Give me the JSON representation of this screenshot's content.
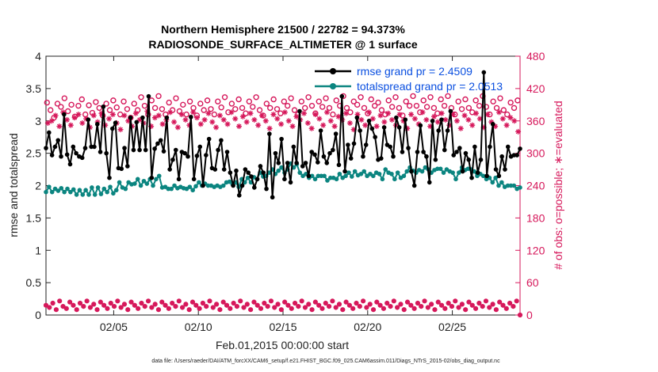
{
  "colors": {
    "rmse": "#000000",
    "spread": "#0b8580",
    "obs": "#d6185b",
    "legend_text": "#0a4fe0",
    "axis": "#222222"
  },
  "chart_data": {
    "type": "line",
    "title": "Northern Hemisphere 21500 / 22782 = 94.373%",
    "subtitle": "RADIOSONDE_SURFACE_ALTIMETER @ 1 surface",
    "xlabel": "Feb.01,2015 00:00:00 start",
    "ylabel": "rmse and totalspread",
    "ylabel_right": "# of obs: o=possible; ∗=evaluated",
    "footer": "data file: /Users/raeder/DAI/ATM_forcXX/CAM6_setup/f.e21.FHIST_BGC.f09_025.CAM6assim.011/Diags_NTrS_2015-02/obs_diag_output.nc",
    "xlim": [
      1,
      29
    ],
    "ylim": [
      0,
      4
    ],
    "ylim_right": [
      0,
      480
    ],
    "yticks": [
      "0",
      "0.5",
      "1",
      "1.5",
      "2",
      "2.5",
      "3",
      "3.5",
      "4"
    ],
    "yticks_right": [
      "0",
      "60",
      "120",
      "180",
      "240",
      "300",
      "360",
      "420",
      "480"
    ],
    "xticks": [
      {
        "day": 5,
        "label": "02/05"
      },
      {
        "day": 10,
        "label": "02/10"
      },
      {
        "day": 15,
        "label": "02/15"
      },
      {
        "day": 20,
        "label": "02/20"
      },
      {
        "day": 25,
        "label": "02/25"
      }
    ],
    "legend": [
      {
        "key": "rmse",
        "label": "rmse grand pr = 2.4509"
      },
      {
        "key": "spread",
        "label": "totalspread grand pr = 2.0513"
      }
    ],
    "series": [
      {
        "name": "rmse",
        "axis": "left",
        "values": [
          2.58,
          2.82,
          2.47,
          2.6,
          2.7,
          2.45,
          3.1,
          2.48,
          2.33,
          2.6,
          2.5,
          2.45,
          2.43,
          2.58,
          3.02,
          2.6,
          2.6,
          2.95,
          2.52,
          3.22,
          2.5,
          2.12,
          2.88,
          2.97,
          2.27,
          2.26,
          2.58,
          2.3,
          3.05,
          2.55,
          2.98,
          2.55,
          3.05,
          2.55,
          3.38,
          2.12,
          2.57,
          2.65,
          2.7,
          2.53,
          3.05,
          2.25,
          2.4,
          2.55,
          2.1,
          2.52,
          2.5,
          2.45,
          3.06,
          2.1,
          2.46,
          2.6,
          2.0,
          2.47,
          2.72,
          2.27,
          2.25,
          2.55,
          2.7,
          2.25,
          2.52,
          2.2,
          2.0,
          2.23,
          1.85,
          2.0,
          2.25,
          2.2,
          2.14,
          1.97,
          2.1,
          2.3,
          2.2,
          1.95,
          2.8,
          1.82,
          2.5,
          2.35,
          2.72,
          2.1,
          2.35,
          2.05,
          2.6,
          2.35,
          3.15,
          2.3,
          2.35,
          2.15,
          2.52,
          2.48,
          2.36,
          2.85,
          2.45,
          2.35,
          2.5,
          2.55,
          2.8,
          2.32,
          3.38,
          2.22,
          2.63,
          2.42,
          2.65,
          3.05,
          2.85,
          2.45,
          2.63,
          3.0,
          2.88,
          2.75,
          2.4,
          2.42,
          2.9,
          2.63,
          2.6,
          2.45,
          3.05,
          2.9,
          2.52,
          3.02,
          2.58,
          2.22,
          2.0,
          2.52,
          2.93,
          2.52,
          2.45,
          2.05,
          3.0,
          2.4,
          2.85,
          3.02,
          2.55,
          2.85,
          3.15,
          2.47,
          2.52,
          2.58,
          2.22,
          2.5,
          2.4,
          2.12,
          2.6,
          2.2,
          2.4,
          3.75,
          2.15,
          2.6,
          2.95,
          2.25,
          2.15,
          2.45,
          2.25,
          2.6,
          2.45,
          2.47,
          2.47,
          2.57
        ]
      },
      {
        "name": "totalspread",
        "axis": "left",
        "values": [
          1.9,
          1.98,
          1.9,
          1.95,
          1.92,
          1.96,
          1.9,
          1.95,
          1.9,
          1.94,
          1.86,
          1.93,
          1.86,
          1.93,
          1.86,
          1.97,
          1.86,
          1.97,
          1.87,
          1.95,
          1.9,
          1.98,
          1.88,
          1.93,
          2.05,
          1.97,
          1.95,
          2.05,
          2.02,
          2.03,
          2.1,
          2.0,
          2.07,
          2.03,
          2.1,
          2.0,
          2.1,
          2.15,
          1.97,
          1.98,
          1.95,
          1.95,
          2.0,
          1.96,
          1.98,
          1.96,
          1.95,
          1.98,
          1.93,
          1.99,
          2.05,
          2.0,
          2.03,
          2.0,
          2.0,
          1.98,
          2.0,
          1.98,
          2.0,
          2.05,
          2.06,
          2.02,
          2.05,
          1.98,
          2.1,
          2.05,
          2.12,
          2.05,
          2.13,
          2.1,
          2.2,
          2.14,
          2.15,
          2.2,
          2.25,
          2.18,
          2.23,
          2.28,
          2.2,
          2.25,
          2.34,
          2.28,
          2.33,
          2.2,
          2.15,
          2.18,
          2.12,
          2.15,
          2.1,
          2.15,
          2.15,
          2.15,
          2.08,
          2.12,
          2.12,
          2.1,
          2.18,
          2.12,
          2.15,
          2.2,
          2.14,
          2.22,
          2.16,
          2.18,
          2.22,
          2.15,
          2.18,
          2.15,
          2.2,
          2.18,
          2.1,
          2.25,
          2.2,
          2.18,
          2.1,
          2.2,
          2.12,
          2.15,
          2.22,
          2.28,
          2.23,
          2.2,
          2.24,
          2.22,
          2.28,
          2.25,
          2.2,
          2.24,
          2.26,
          2.26,
          2.2,
          2.25,
          2.22,
          2.2,
          2.1,
          2.2,
          2.28,
          2.24,
          2.26,
          2.25,
          2.22,
          2.15,
          2.18,
          2.15,
          2.1,
          2.12,
          2.05,
          2.12,
          2.0,
          2.05,
          1.98,
          2.0,
          2.0,
          2.0,
          1.95,
          1.97
        ]
      },
      {
        "name": "obs possible",
        "axis": "right",
        "values": [
          394,
          380,
          366,
          392,
          386,
          402,
          378,
          390,
          368,
          388,
          400,
          372,
          389,
          375,
          395,
          384,
          370,
          392,
          380,
          398,
          385,
          372,
          396,
          382,
          366,
          392,
          380,
          404,
          388,
          372,
          398,
          384,
          406,
          382,
          372,
          394,
          380,
          402,
          378,
          390,
          372,
          396,
          384,
          370,
          392,
          380,
          398,
          382,
          372,
          396,
          385,
          404,
          376,
          392,
          382,
          400,
          384,
          374,
          396,
          386,
          404,
          380,
          370,
          392,
          384,
          400,
          382,
          374,
          396,
          388,
          402,
          380,
          372,
          396,
          384,
          404,
          388,
          374,
          396,
          386,
          402,
          384,
          372,
          398,
          388,
          406,
          384,
          376,
          396,
          390,
          404,
          384,
          374,
          400,
          388,
          394,
          380,
          372,
          398,
          386,
          404,
          384,
          370,
          396,
          388,
          406,
          388,
          376,
          398,
          386,
          404,
          384,
          374,
          400,
          388,
          406,
          384,
          372,
          396,
          382,
          400,
          384,
          376,
          398,
          388,
          406,
          386,
          372,
          396,
          384,
          402,
          380,
          372,
          394,
          384,
          398
        ],
        "x_step": 0.2
      },
      {
        "name": "obs evaluated",
        "axis": "right",
        "values": [
          356,
          360,
          370,
          350,
          376,
          362,
          352,
          366,
          372,
          356,
          364,
          348,
          370,
          358,
          374,
          352,
          364,
          372,
          356,
          344,
          370,
          360,
          350,
          374,
          362,
          356,
          378,
          350,
          366,
          370,
          354,
          362,
          376,
          358,
          348,
          372,
          362,
          352,
          376,
          366,
          354,
          362,
          374,
          358,
          348,
          370,
          362,
          354,
          376,
          364,
          350,
          368,
          358,
          374,
          362,
          352,
          370,
          360,
          346,
          372,
          364,
          354,
          376,
          360,
          350,
          368,
          362,
          374,
          356,
          346,
          372,
          364,
          352,
          376,
          360,
          350,
          368,
          362,
          374,
          356,
          344,
          372,
          362,
          352,
          376,
          364,
          350,
          370,
          358,
          374,
          362,
          352,
          372,
          360,
          346,
          372,
          364,
          354,
          376,
          362,
          350,
          368,
          358,
          374,
          362,
          352,
          372,
          360,
          346,
          370,
          362,
          352,
          374,
          364,
          348,
          372,
          358,
          350,
          376,
          364,
          352,
          366,
          360,
          340
        ],
        "x_step": 0.2
      },
      {
        "name": "obs rejected low",
        "axis": "right",
        "values": [
          18,
          14,
          22,
          10,
          26,
          16,
          12,
          24,
          18,
          10,
          22,
          16,
          26,
          14,
          20,
          10,
          24,
          18,
          12,
          22,
          16,
          26,
          14,
          20,
          10,
          24,
          18,
          12,
          22,
          16,
          26,
          14,
          20,
          10,
          24,
          18,
          12,
          22,
          16,
          26,
          14,
          20,
          10,
          24,
          18,
          12,
          22,
          16,
          26,
          14,
          20,
          10,
          24,
          18,
          12,
          22,
          16,
          26,
          14,
          20,
          10,
          24,
          18,
          12,
          22,
          16,
          26,
          14,
          20,
          10,
          24,
          18,
          12,
          22,
          16,
          26,
          14,
          20,
          10,
          24,
          18,
          12,
          22,
          16,
          26,
          14,
          20,
          10,
          24,
          18,
          12,
          22,
          16,
          26,
          14,
          20,
          10,
          24,
          18,
          12,
          22,
          16,
          26,
          14,
          20,
          10,
          24,
          18,
          12,
          22,
          16,
          26,
          14,
          20,
          10,
          24,
          18,
          12,
          22,
          16,
          26,
          14,
          20,
          10,
          24,
          18,
          12,
          22,
          16,
          26,
          14,
          20,
          10,
          24,
          18,
          12,
          22,
          16,
          26,
          0
        ],
        "x_step": 0.2
      }
    ]
  }
}
